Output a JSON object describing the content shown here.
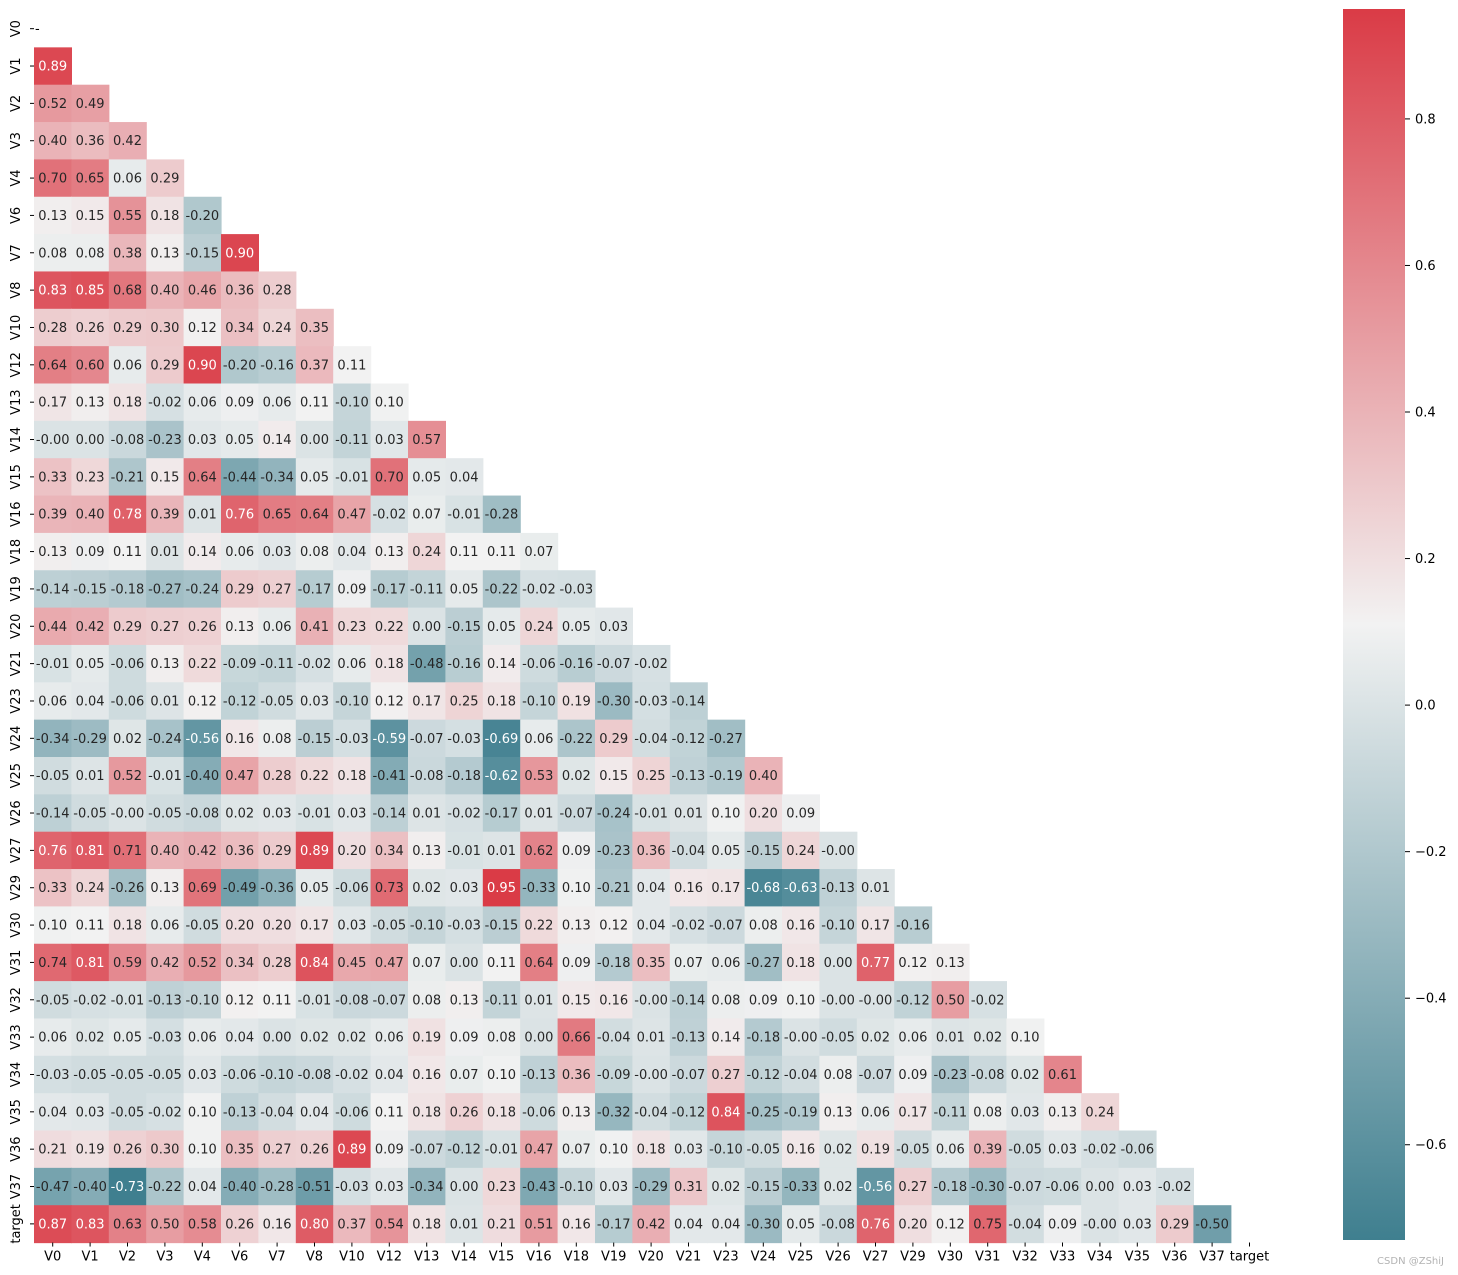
{
  "chart_data": {
    "type": "heatmap",
    "title": "",
    "mask": "upper-triangle",
    "variables": [
      "V0",
      "V1",
      "V2",
      "V3",
      "V4",
      "V6",
      "V7",
      "V8",
      "V10",
      "V12",
      "V13",
      "V14",
      "V15",
      "V16",
      "V18",
      "V19",
      "V20",
      "V21",
      "V23",
      "V24",
      "V25",
      "V26",
      "V27",
      "V29",
      "V30",
      "V31",
      "V32",
      "V33",
      "V34",
      "V35",
      "V36",
      "V37",
      "target"
    ],
    "row_values": [
      [],
      [
        "0.89"
      ],
      [
        "0.52",
        "0.49"
      ],
      [
        "0.40",
        "0.36",
        "0.42"
      ],
      [
        "0.70",
        "0.65",
        "0.06",
        "0.29"
      ],
      [
        "0.13",
        "0.15",
        "0.55",
        "0.18",
        "-0.20"
      ],
      [
        "0.08",
        "0.08",
        "0.38",
        "0.13",
        "-0.15",
        "0.90"
      ],
      [
        "0.83",
        "0.85",
        "0.68",
        "0.40",
        "0.46",
        "0.36",
        "0.28"
      ],
      [
        "0.28",
        "0.26",
        "0.29",
        "0.30",
        "0.12",
        "0.34",
        "0.24",
        "0.35"
      ],
      [
        "0.64",
        "0.60",
        "0.06",
        "0.29",
        "0.90",
        "-0.20",
        "-0.16",
        "0.37",
        "0.11"
      ],
      [
        "0.17",
        "0.13",
        "0.18",
        "-0.02",
        "0.06",
        "0.09",
        "0.06",
        "0.11",
        "-0.10",
        "0.10"
      ],
      [
        "-0.00",
        "0.00",
        "-0.08",
        "-0.23",
        "0.03",
        "0.05",
        "0.14",
        "0.00",
        "-0.11",
        "0.03",
        "0.57"
      ],
      [
        "0.33",
        "0.23",
        "-0.21",
        "0.15",
        "0.64",
        "-0.44",
        "-0.34",
        "0.05",
        "-0.01",
        "0.70",
        "0.05",
        "0.04"
      ],
      [
        "0.39",
        "0.40",
        "0.78",
        "0.39",
        "0.01",
        "0.76",
        "0.65",
        "0.64",
        "0.47",
        "-0.02",
        "0.07",
        "-0.01",
        "-0.28"
      ],
      [
        "0.13",
        "0.09",
        "0.11",
        "0.01",
        "0.14",
        "0.06",
        "0.03",
        "0.08",
        "0.04",
        "0.13",
        "0.24",
        "0.11",
        "0.11",
        "0.07"
      ],
      [
        "-0.14",
        "-0.15",
        "-0.18",
        "-0.27",
        "-0.24",
        "0.29",
        "0.27",
        "-0.17",
        "0.09",
        "-0.17",
        "-0.11",
        "0.05",
        "-0.22",
        "-0.02",
        "-0.03"
      ],
      [
        "0.44",
        "0.42",
        "0.29",
        "0.27",
        "0.26",
        "0.13",
        "0.06",
        "0.41",
        "0.23",
        "0.22",
        "0.00",
        "-0.15",
        "0.05",
        "0.24",
        "0.05",
        "0.03"
      ],
      [
        "-0.01",
        "0.05",
        "-0.06",
        "0.13",
        "0.22",
        "-0.09",
        "-0.11",
        "-0.02",
        "0.06",
        "0.18",
        "-0.48",
        "-0.16",
        "0.14",
        "-0.06",
        "-0.16",
        "-0.07",
        "-0.02"
      ],
      [
        "0.06",
        "0.04",
        "-0.06",
        "0.01",
        "0.12",
        "-0.12",
        "-0.05",
        "0.03",
        "-0.10",
        "0.12",
        "0.17",
        "0.25",
        "0.18",
        "-0.10",
        "0.19",
        "-0.30",
        "-0.03",
        "-0.14"
      ],
      [
        "-0.34",
        "-0.29",
        "0.02",
        "-0.24",
        "-0.56",
        "0.16",
        "0.08",
        "-0.15",
        "-0.03",
        "-0.59",
        "-0.07",
        "-0.03",
        "-0.69",
        "0.06",
        "-0.22",
        "0.29",
        "-0.04",
        "-0.12",
        "-0.27"
      ],
      [
        "-0.05",
        "0.01",
        "0.52",
        "-0.01",
        "-0.40",
        "0.47",
        "0.28",
        "0.22",
        "0.18",
        "-0.41",
        "-0.08",
        "-0.18",
        "-0.62",
        "0.53",
        "0.02",
        "0.15",
        "0.25",
        "-0.13",
        "-0.19",
        "0.40"
      ],
      [
        "-0.14",
        "-0.05",
        "-0.00",
        "-0.05",
        "-0.08",
        "0.02",
        "0.03",
        "-0.01",
        "0.03",
        "-0.14",
        "0.01",
        "-0.02",
        "-0.17",
        "0.01",
        "-0.07",
        "-0.24",
        "-0.01",
        "0.01",
        "0.10",
        "0.20",
        "0.09"
      ],
      [
        "0.76",
        "0.81",
        "0.71",
        "0.40",
        "0.42",
        "0.36",
        "0.29",
        "0.89",
        "0.20",
        "0.34",
        "0.13",
        "-0.01",
        "0.01",
        "0.62",
        "0.09",
        "-0.23",
        "0.36",
        "-0.04",
        "0.05",
        "-0.15",
        "0.24",
        "-0.00"
      ],
      [
        "0.33",
        "0.24",
        "-0.26",
        "0.13",
        "0.69",
        "-0.49",
        "-0.36",
        "0.05",
        "-0.06",
        "0.73",
        "0.02",
        "0.03",
        "0.95",
        "-0.33",
        "0.10",
        "-0.21",
        "0.04",
        "0.16",
        "0.17",
        "-0.68",
        "-0.63",
        "-0.13",
        "0.01"
      ],
      [
        "0.10",
        "0.11",
        "0.18",
        "0.06",
        "-0.05",
        "0.20",
        "0.20",
        "0.17",
        "0.03",
        "-0.05",
        "-0.10",
        "-0.03",
        "-0.15",
        "0.22",
        "0.13",
        "0.12",
        "0.04",
        "-0.02",
        "-0.07",
        "0.08",
        "0.16",
        "-0.10",
        "0.17",
        "-0.16"
      ],
      [
        "0.74",
        "0.81",
        "0.59",
        "0.42",
        "0.52",
        "0.34",
        "0.28",
        "0.84",
        "0.45",
        "0.47",
        "0.07",
        "0.00",
        "0.11",
        "0.64",
        "0.09",
        "-0.18",
        "0.35",
        "0.07",
        "0.06",
        "-0.27",
        "0.18",
        "0.00",
        "0.77",
        "0.12",
        "0.13"
      ],
      [
        "-0.05",
        "-0.02",
        "-0.01",
        "-0.13",
        "-0.10",
        "0.12",
        "0.11",
        "-0.01",
        "-0.08",
        "-0.07",
        "0.08",
        "0.13",
        "-0.11",
        "0.01",
        "0.15",
        "0.16",
        "-0.00",
        "-0.14",
        "0.08",
        "0.09",
        "0.10",
        "-0.00",
        "-0.00",
        "-0.12",
        "0.50",
        "-0.02"
      ],
      [
        "0.06",
        "0.02",
        "0.05",
        "-0.03",
        "0.06",
        "0.04",
        "0.00",
        "0.02",
        "0.02",
        "0.06",
        "0.19",
        "0.09",
        "0.08",
        "0.00",
        "0.66",
        "-0.04",
        "0.01",
        "-0.13",
        "0.14",
        "-0.18",
        "-0.00",
        "-0.05",
        "0.02",
        "0.06",
        "0.01",
        "0.02",
        "0.10"
      ],
      [
        "-0.03",
        "-0.05",
        "-0.05",
        "-0.05",
        "0.03",
        "-0.06",
        "-0.10",
        "-0.08",
        "-0.02",
        "0.04",
        "0.16",
        "0.07",
        "0.10",
        "-0.13",
        "0.36",
        "-0.09",
        "-0.00",
        "-0.07",
        "0.27",
        "-0.12",
        "-0.04",
        "0.08",
        "-0.07",
        "0.09",
        "-0.23",
        "-0.08",
        "0.02",
        "0.61"
      ],
      [
        "0.04",
        "0.03",
        "-0.05",
        "-0.02",
        "0.10",
        "-0.13",
        "-0.04",
        "0.04",
        "-0.06",
        "0.11",
        "0.18",
        "0.26",
        "0.18",
        "-0.06",
        "0.13",
        "-0.32",
        "-0.04",
        "-0.12",
        "0.84",
        "-0.25",
        "-0.19",
        "0.13",
        "0.06",
        "0.17",
        "-0.11",
        "0.08",
        "0.03",
        "0.13",
        "0.24"
      ],
      [
        "0.21",
        "0.19",
        "0.26",
        "0.30",
        "0.10",
        "0.35",
        "0.27",
        "0.26",
        "0.89",
        "0.09",
        "-0.07",
        "-0.12",
        "-0.01",
        "0.47",
        "0.07",
        "0.10",
        "0.18",
        "0.03",
        "-0.10",
        "-0.05",
        "0.16",
        "0.02",
        "0.19",
        "-0.05",
        "0.06",
        "0.39",
        "-0.05",
        "0.03",
        "-0.02",
        "-0.06"
      ],
      [
        "-0.47",
        "-0.40",
        "-0.73",
        "-0.22",
        "0.04",
        "-0.40",
        "-0.28",
        "-0.51",
        "-0.03",
        "0.03",
        "-0.34",
        "0.00",
        "0.23",
        "-0.43",
        "-0.10",
        "0.03",
        "-0.29",
        "0.31",
        "0.02",
        "-0.15",
        "-0.33",
        "0.02",
        "-0.56",
        "0.27",
        "-0.18",
        "-0.30",
        "-0.07",
        "-0.06",
        "0.00",
        "0.03",
        "-0.02"
      ],
      [
        "0.87",
        "0.83",
        "0.63",
        "0.50",
        "0.58",
        "0.26",
        "0.16",
        "0.80",
        "0.37",
        "0.54",
        "0.18",
        "0.01",
        "0.21",
        "0.51",
        "0.16",
        "-0.17",
        "0.42",
        "0.04",
        "0.04",
        "-0.30",
        "0.05",
        "-0.08",
        "0.76",
        "0.20",
        "0.12",
        "0.75",
        "-0.04",
        "0.09",
        "-0.00",
        "0.03",
        "0.29",
        "-0.50"
      ]
    ],
    "diagonal_label": "-",
    "colorbar": {
      "vmin": -0.73,
      "vmax": 0.95,
      "ticks": [
        -0.6,
        -0.4,
        -0.2,
        0.0,
        0.2,
        0.4,
        0.6,
        0.8
      ],
      "tick_labels": [
        "−0.6",
        "−0.4",
        "−0.2",
        "0.0",
        "0.2",
        "0.4",
        "0.6",
        "0.8"
      ],
      "colormap": "diverging teal-white-red",
      "colors": {
        "negative": "#3f7f8f",
        "neutral": "#f2f2f2",
        "positive": "#da3b46"
      }
    }
  },
  "watermark": "CSDN @ZShiJ"
}
